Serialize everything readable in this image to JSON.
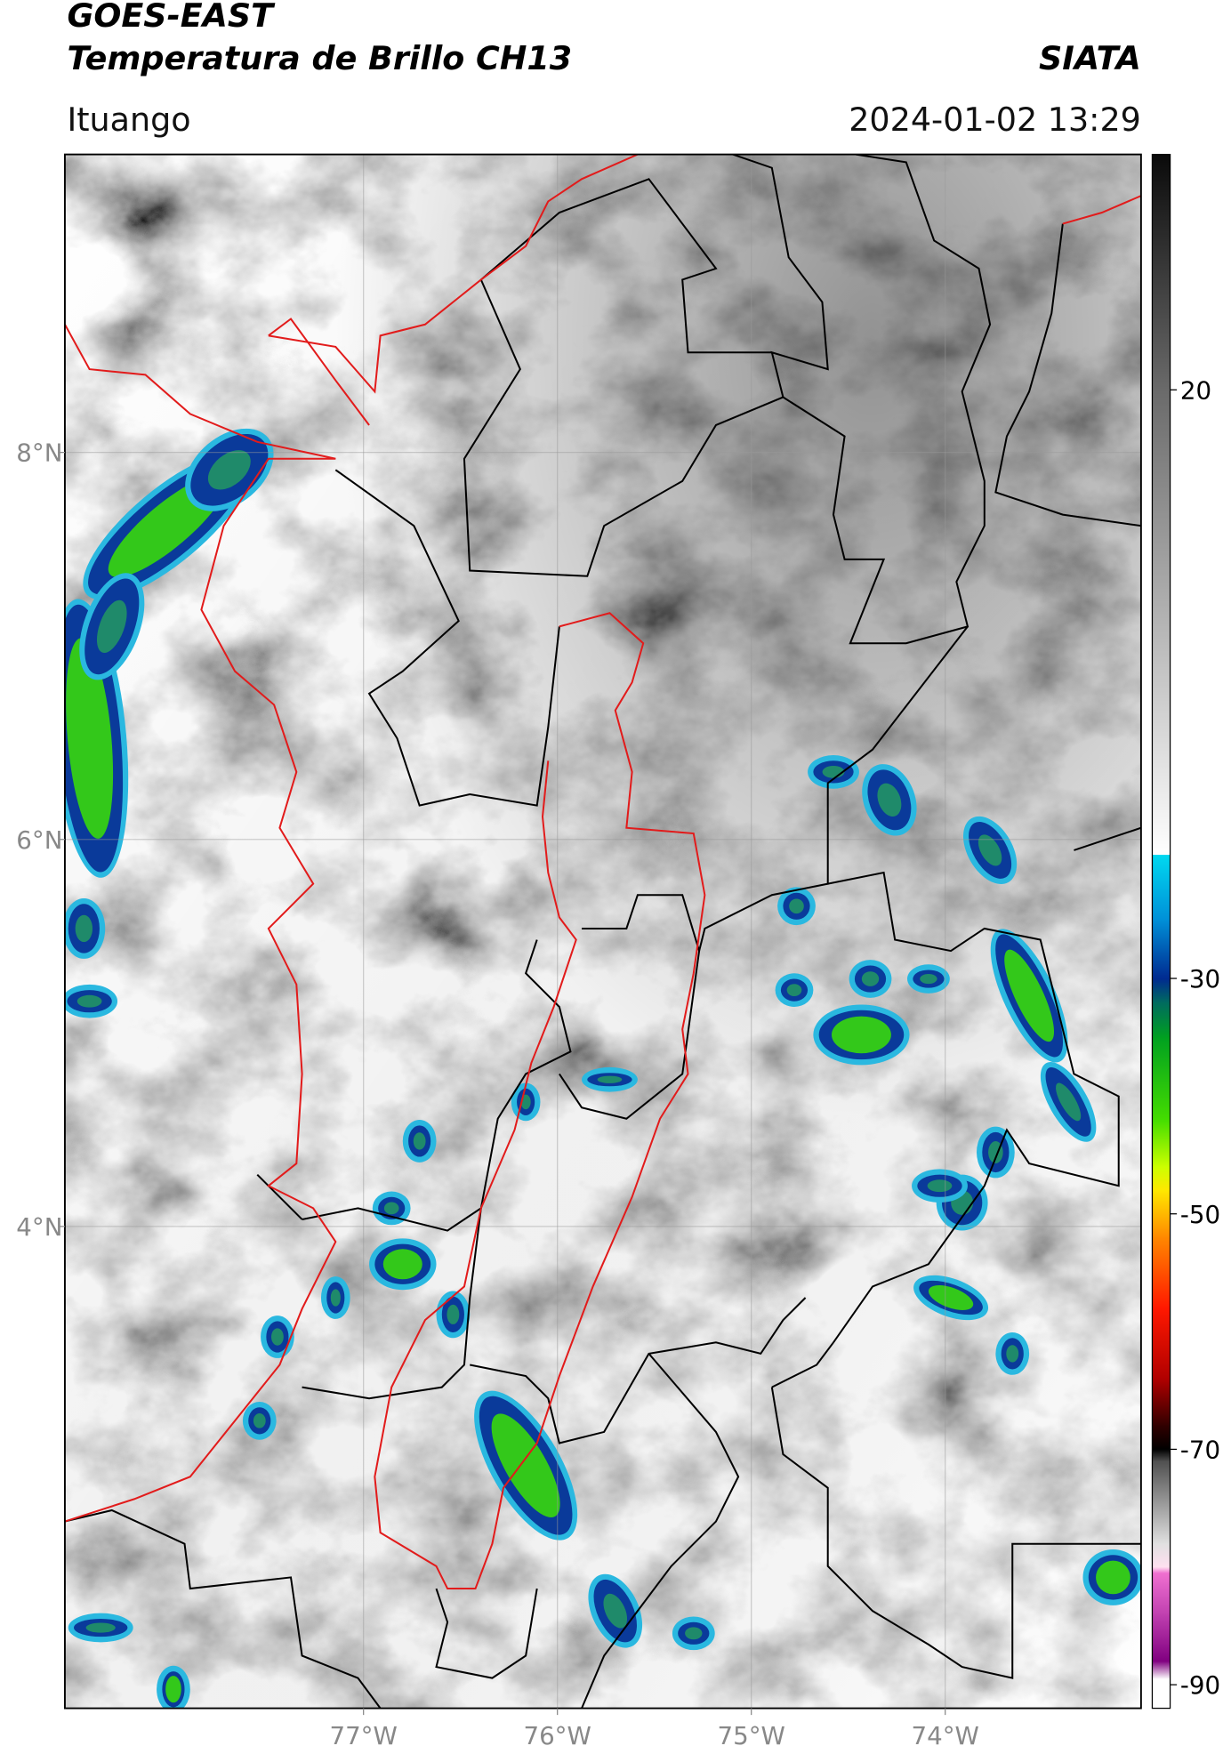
{
  "chart_data": {
    "type": "map",
    "title": "GOES-EAST",
    "subtitle": "Temperatura de Brillo CH13",
    "source": "SIATA",
    "location": "Ituango",
    "timestamp": "2024-01-02 13:29",
    "xlim": [
      -78.54,
      -72.99
    ],
    "ylim": [
      1.51,
      9.54
    ],
    "xticks": [
      {
        "value": -77,
        "label": "77°W"
      },
      {
        "value": -76,
        "label": "76°W"
      },
      {
        "value": -75,
        "label": "75°W"
      },
      {
        "value": -74,
        "label": "74°W"
      }
    ],
    "yticks": [
      {
        "value": 8,
        "label": "8°N"
      },
      {
        "value": 6,
        "label": "6°N"
      },
      {
        "value": 4,
        "label": "4°N"
      }
    ],
    "grid": true,
    "colorbar": {
      "lim": [
        -92,
        40
      ],
      "ticks": [
        20,
        -30,
        -50,
        -70,
        -90
      ],
      "stops": [
        {
          "value": 40,
          "color": "#0a0a0a"
        },
        {
          "value": 30,
          "color": "#3a3a3a"
        },
        {
          "value": 20,
          "color": "#6a6a6a"
        },
        {
          "value": 0,
          "color": "#b5b5b5"
        },
        {
          "value": -19.5,
          "color": "#ffffff"
        },
        {
          "value": -19.5,
          "color": "#00d8f0"
        },
        {
          "value": -25,
          "color": "#0090d8"
        },
        {
          "value": -30,
          "color": "#002a90"
        },
        {
          "value": -32,
          "color": "#006a60"
        },
        {
          "value": -35,
          "color": "#00a020"
        },
        {
          "value": -42,
          "color": "#44dd00"
        },
        {
          "value": -46,
          "color": "#ccff00"
        },
        {
          "value": -48,
          "color": "#ffe800"
        },
        {
          "value": -52,
          "color": "#ff8800"
        },
        {
          "value": -58,
          "color": "#ff1800"
        },
        {
          "value": -64,
          "color": "#b00000"
        },
        {
          "value": -68,
          "color": "#300000"
        },
        {
          "value": -70,
          "color": "#000000"
        },
        {
          "value": -71,
          "color": "#505050"
        },
        {
          "value": -78,
          "color": "#e0e0e0"
        },
        {
          "value": -80,
          "color": "#ffe0f0"
        },
        {
          "value": -80.5,
          "color": "#f070d0"
        },
        {
          "value": -84,
          "color": "#c040b0"
        },
        {
          "value": -88,
          "color": "#800080"
        },
        {
          "value": -89.5,
          "color": "#ffffff"
        },
        {
          "value": -92,
          "color": "#ffffff"
        }
      ]
    }
  }
}
